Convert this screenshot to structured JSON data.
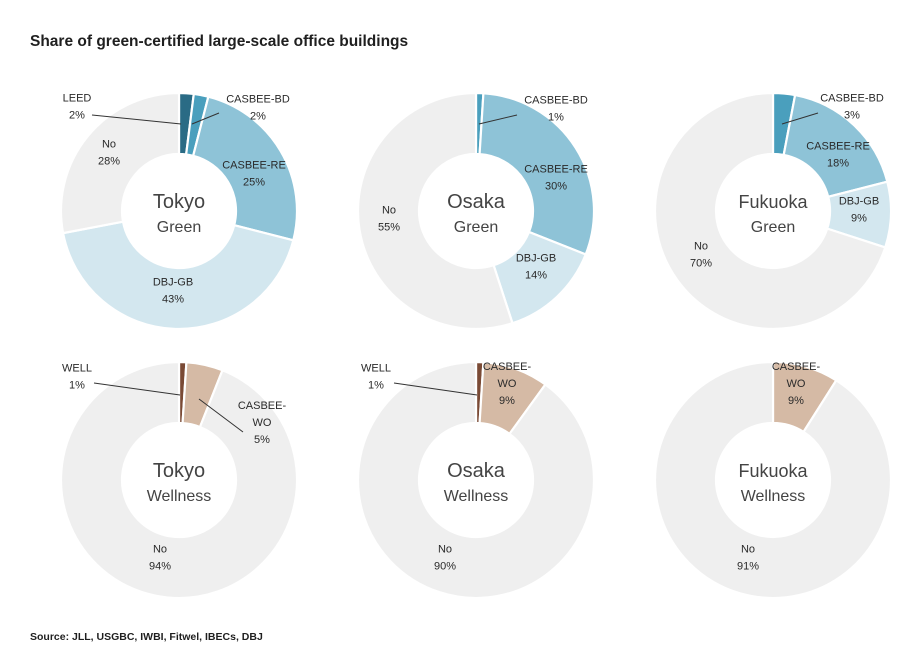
{
  "title": "Share of green-certified large-scale office buildings",
  "source": "Source: JLL, USGBC, IWBI, Fitwel, IBECs, DBJ",
  "colors": {
    "leed": "#2a6b85",
    "casbee_bd": "#4a9fbd",
    "casbee_re": "#8ec3d7",
    "dbj_gb": "#d3e7ef",
    "no": "#efefef",
    "well": "#7a4a35",
    "casbee_wo": "#d5baa5"
  },
  "chart_data": [
    {
      "type": "pie",
      "id": "tokyo-green",
      "center_label": [
        "Tokyo",
        "Green"
      ],
      "slices": [
        {
          "label": "LEED",
          "value": 2,
          "color": "#2a6b85",
          "label_lines": [
            "LEED",
            "2%"
          ]
        },
        {
          "label": "CASBEE-BD",
          "value": 2,
          "color": "#4a9fbd",
          "label_lines": [
            "CASBEE-BD",
            "2%"
          ]
        },
        {
          "label": "CASBEE-RE",
          "value": 25,
          "color": "#8ec3d7",
          "label_lines": [
            "CASBEE-RE",
            "25%"
          ]
        },
        {
          "label": "DBJ-GB",
          "value": 43,
          "color": "#d3e7ef",
          "label_lines": [
            "DBJ-GB",
            "43%"
          ]
        },
        {
          "label": "No",
          "value": 28,
          "color": "#efefef",
          "label_lines": [
            "No",
            "28%"
          ]
        }
      ]
    },
    {
      "type": "pie",
      "id": "osaka-green",
      "center_label": [
        "Osaka",
        "Green"
      ],
      "slices": [
        {
          "label": "CASBEE-BD",
          "value": 1,
          "color": "#4a9fbd",
          "label_lines": [
            "CASBEE-BD",
            "1%"
          ]
        },
        {
          "label": "CASBEE-RE",
          "value": 30,
          "color": "#8ec3d7",
          "label_lines": [
            "CASBEE-RE",
            "30%"
          ]
        },
        {
          "label": "DBJ-GB",
          "value": 14,
          "color": "#d3e7ef",
          "label_lines": [
            "DBJ-GB",
            "14%"
          ]
        },
        {
          "label": "No",
          "value": 55,
          "color": "#efefef",
          "label_lines": [
            "No",
            "55%"
          ]
        }
      ]
    },
    {
      "type": "pie",
      "id": "fukuoka-green",
      "center_label": [
        "Fukuoka",
        "Green"
      ],
      "slices": [
        {
          "label": "CASBEE-BD",
          "value": 3,
          "color": "#4a9fbd",
          "label_lines": [
            "CASBEE-BD",
            "3%"
          ]
        },
        {
          "label": "CASBEE-RE",
          "value": 18,
          "color": "#8ec3d7",
          "label_lines": [
            "CASBEE-RE",
            "18%"
          ]
        },
        {
          "label": "DBJ-GB",
          "value": 9,
          "color": "#d3e7ef",
          "label_lines": [
            "DBJ-GB",
            "9%"
          ]
        },
        {
          "label": "No",
          "value": 70,
          "color": "#efefef",
          "label_lines": [
            "No",
            "70%"
          ]
        }
      ]
    },
    {
      "type": "pie",
      "id": "tokyo-wellness",
      "center_label": [
        "Tokyo",
        "Wellness"
      ],
      "slices": [
        {
          "label": "WELL",
          "value": 1,
          "color": "#7a4a35",
          "label_lines": [
            "WELL",
            "1%"
          ]
        },
        {
          "label": "CASBEE-WO",
          "value": 5,
          "color": "#d5baa5",
          "label_lines": [
            "CASBEE-",
            "WO",
            "5%"
          ]
        },
        {
          "label": "No",
          "value": 94,
          "color": "#efefef",
          "label_lines": [
            "No",
            "94%"
          ]
        }
      ]
    },
    {
      "type": "pie",
      "id": "osaka-wellness",
      "center_label": [
        "Osaka",
        "Wellness"
      ],
      "slices": [
        {
          "label": "WELL",
          "value": 1,
          "color": "#7a4a35",
          "label_lines": [
            "WELL",
            "1%"
          ]
        },
        {
          "label": "CASBEE-WO",
          "value": 9,
          "color": "#d5baa5",
          "label_lines": [
            "CASBEE-",
            "WO",
            "9%"
          ]
        },
        {
          "label": "No",
          "value": 90,
          "color": "#efefef",
          "label_lines": [
            "No",
            "90%"
          ]
        }
      ]
    },
    {
      "type": "pie",
      "id": "fukuoka-wellness",
      "center_label": [
        "Fukuoka",
        "Wellness"
      ],
      "slices": [
        {
          "label": "CASBEE-WO",
          "value": 9,
          "color": "#d5baa5",
          "label_lines": [
            "CASBEE-",
            "WO",
            "9%"
          ]
        },
        {
          "label": "No",
          "value": 91,
          "color": "#efefef",
          "label_lines": [
            "No",
            "91%"
          ]
        }
      ]
    }
  ]
}
